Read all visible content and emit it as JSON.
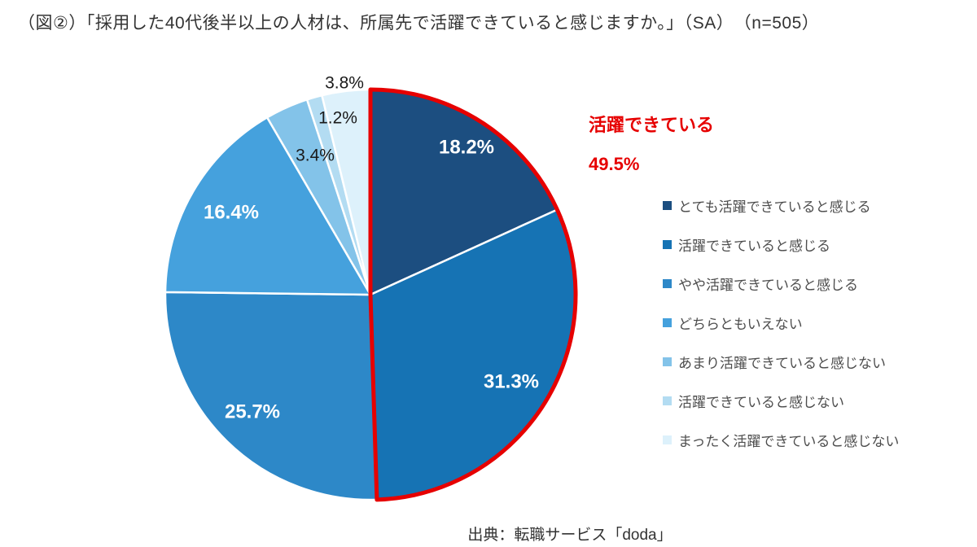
{
  "title": "（図②）「採用した40代後半以上の人材は、所属先で活躍できていると感じますか。」（SA）　（n=505）",
  "source": "出典：転職サービス「doda」",
  "chart_data": {
    "type": "pie",
    "title": "採用した40代後半以上の人材は、所属先で活躍できていると感じますか。（SA）",
    "sample_size": 505,
    "start_angle_deg": 0,
    "direction": "clockwise",
    "legend_position": "right",
    "series": [
      {
        "label": "とても活躍できていると感じる",
        "value": 18.2,
        "color": "#1c4e80"
      },
      {
        "label": "活躍できていると感じる",
        "value": 31.3,
        "color": "#1673b4"
      },
      {
        "label": "やや活躍できていると感じる",
        "value": 25.7,
        "color": "#2d88c8"
      },
      {
        "label": "どちらともいえない",
        "value": 16.4,
        "color": "#45a1dd"
      },
      {
        "label": "あまり活躍できていると感じない",
        "value": 3.4,
        "color": "#83c3e9"
      },
      {
        "label": "活躍できていると感じない",
        "value": 1.2,
        "color": "#b3dcf2"
      },
      {
        "label": "まったく活躍できていると感じない",
        "value": 3.8,
        "color": "#ddf1fb"
      }
    ],
    "highlight": {
      "label": "活躍できている",
      "value": 49.5,
      "text": "49.5%",
      "slice_count": 2,
      "color": "#e60000"
    }
  }
}
